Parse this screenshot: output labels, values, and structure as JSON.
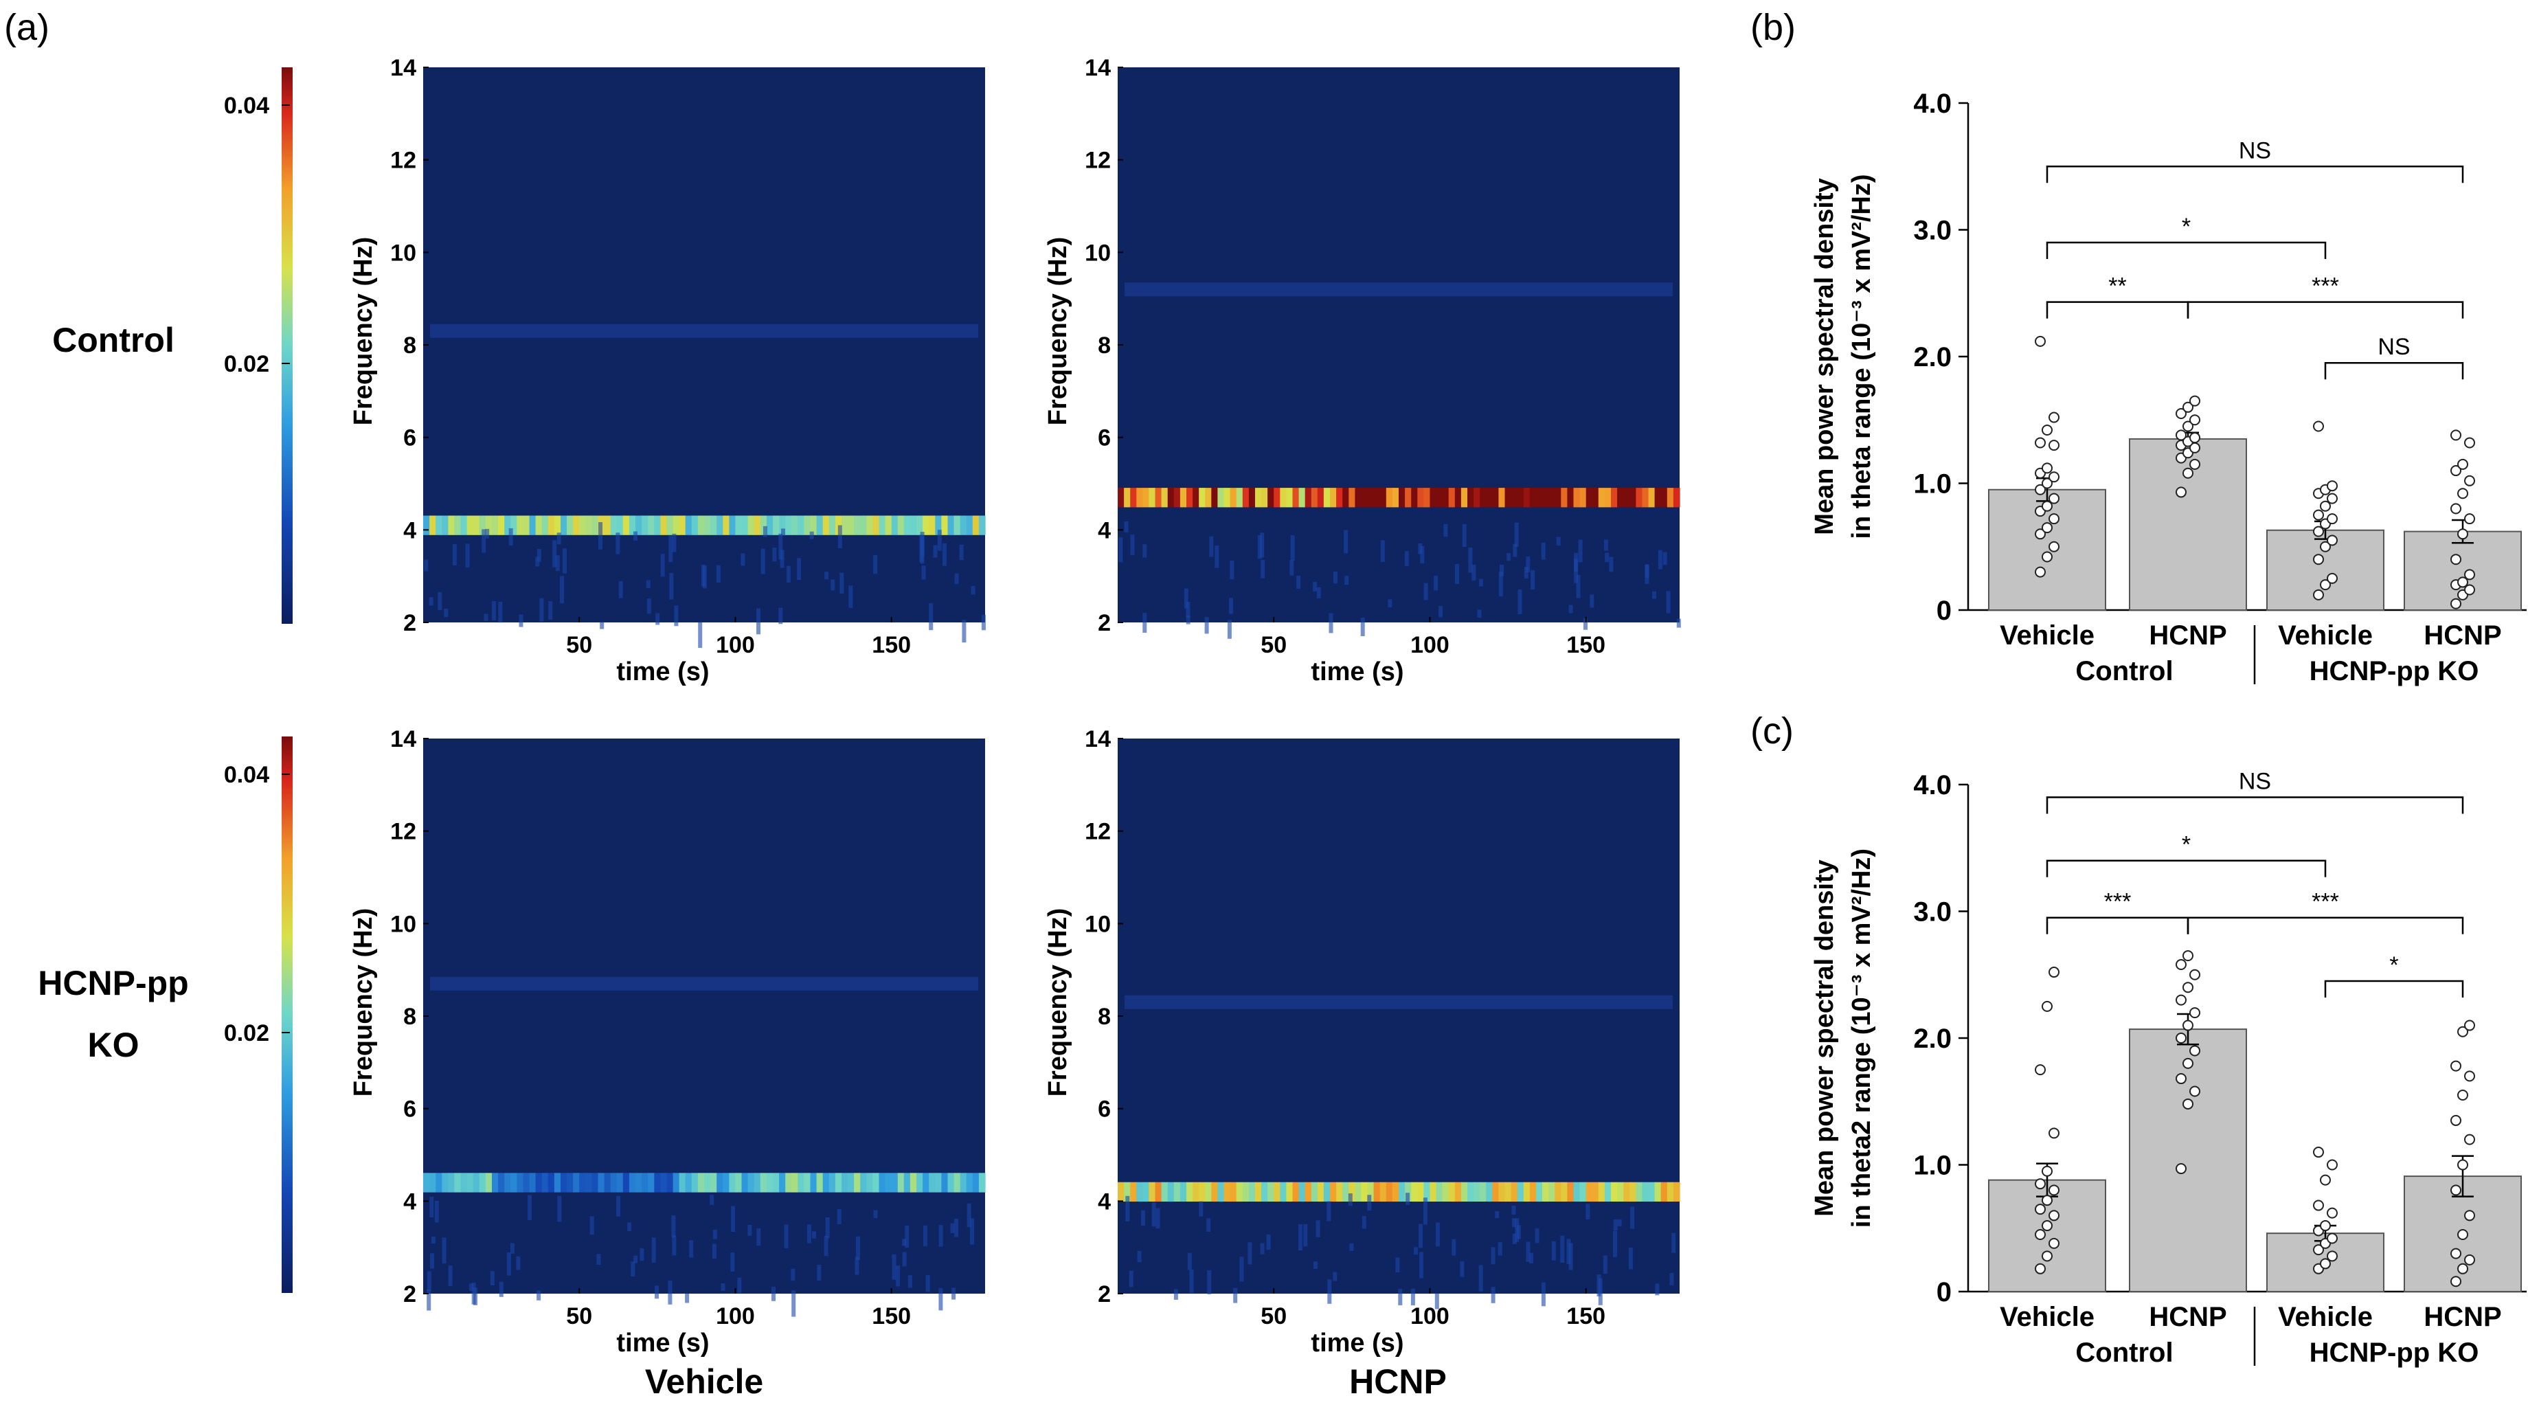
{
  "panel_labels": {
    "a": "(a)",
    "b": "(b)",
    "c": "(c)"
  },
  "row_labels": {
    "control": "Control",
    "ko_line1": "HCNP-pp",
    "ko_line2": "KO"
  },
  "column_labels": {
    "vehicle": "Vehicle",
    "hcnp": "HCNP"
  },
  "colorbar": {
    "ticks": [
      "0.04",
      "0.02"
    ],
    "tick_values": [
      0.04,
      0.02
    ],
    "range": [
      0.0,
      0.043
    ]
  },
  "colors": {
    "bar": "#c3c3c3",
    "bg_dark": "#0e2562",
    "colormap": [
      "#0b1d5e",
      "#1446b4",
      "#2f9de0",
      "#6fd6c8",
      "#d7e24a",
      "#f2a12b",
      "#d8261c",
      "#7a0c0c"
    ]
  },
  "chart_data": [
    {
      "type": "heatmap",
      "name": "Control / Vehicle",
      "xlabel": "time (s)",
      "ylabel": "Frequency (Hz)",
      "xticks": [
        50,
        100,
        150
      ],
      "yticks": [
        2,
        4,
        6,
        8,
        10,
        12,
        14
      ],
      "xlim": [
        0,
        180
      ],
      "ylim": [
        2,
        14
      ],
      "theta_band_hz": 4.1,
      "theta_power": 0.024,
      "secondary_band_hz": 8.3
    },
    {
      "type": "heatmap",
      "name": "Control / HCNP",
      "xlabel": "time (s)",
      "ylabel": "Frequency (Hz)",
      "xticks": [
        50,
        100,
        150
      ],
      "yticks": [
        2,
        4,
        6,
        8,
        10,
        12,
        14
      ],
      "xlim": [
        0,
        180
      ],
      "ylim": [
        2,
        14
      ],
      "theta_band_hz": 4.7,
      "theta_power": 0.036,
      "secondary_band_hz": 9.2
    },
    {
      "type": "heatmap",
      "name": "HCNP-pp KO / Vehicle",
      "xlabel": "time (s)",
      "ylabel": "Frequency (Hz)",
      "xticks": [
        50,
        100,
        150
      ],
      "yticks": [
        2,
        4,
        6,
        8,
        10,
        12,
        14
      ],
      "xlim": [
        0,
        180
      ],
      "ylim": [
        2,
        14
      ],
      "theta_band_hz": 4.4,
      "theta_power": 0.02,
      "secondary_band_hz": 8.7
    },
    {
      "type": "heatmap",
      "name": "HCNP-pp KO / HCNP",
      "xlabel": "time (s)",
      "ylabel": "Frequency (Hz)",
      "xticks": [
        50,
        100,
        150
      ],
      "yticks": [
        2,
        4,
        6,
        8,
        10,
        12,
        14
      ],
      "xlim": [
        0,
        180
      ],
      "ylim": [
        2,
        14
      ],
      "theta_band_hz": 4.2,
      "theta_power": 0.028,
      "secondary_band_hz": 8.3
    },
    {
      "type": "bar",
      "name": "(b)",
      "ylabel_line1": "Mean power spectral density",
      "ylabel_line2": "in theta range (10⁻³ x mV²/Hz)",
      "categories": [
        "Vehicle",
        "HCNP",
        "Vehicle",
        "HCNP"
      ],
      "groups": [
        "Control",
        "HCNP-pp KO"
      ],
      "values": [
        0.95,
        1.35,
        0.63,
        0.62
      ],
      "errors": [
        0.09,
        0.05,
        0.07,
        0.09
      ],
      "ylim": [
        0,
        4.0
      ],
      "yticks": [
        "0",
        "1.0",
        "2.0",
        "3.0",
        "4.0"
      ],
      "points": [
        [
          0.3,
          0.42,
          0.5,
          0.6,
          0.65,
          0.72,
          0.78,
          0.82,
          0.88,
          0.95,
          1.0,
          1.05,
          1.08,
          1.12,
          1.3,
          1.32,
          1.42,
          1.52,
          2.12
        ],
        [
          0.93,
          1.08,
          1.15,
          1.2,
          1.24,
          1.28,
          1.3,
          1.33,
          1.36,
          1.38,
          1.45,
          1.5,
          1.55,
          1.6,
          1.65
        ],
        [
          0.12,
          0.2,
          0.25,
          0.4,
          0.5,
          0.55,
          0.62,
          0.68,
          0.72,
          0.75,
          0.82,
          0.88,
          0.92,
          0.95,
          0.98,
          1.45
        ],
        [
          0.05,
          0.12,
          0.16,
          0.2,
          0.22,
          0.28,
          0.4,
          0.6,
          0.72,
          0.8,
          0.92,
          1.02,
          1.1,
          1.15,
          1.32,
          1.38
        ]
      ],
      "significance": [
        {
          "from": 0,
          "to": 3,
          "label": "NS",
          "y": 3.5
        },
        {
          "from": 0,
          "to": 2,
          "label": "*",
          "y": 2.9
        },
        {
          "from": 0,
          "to": 1,
          "label": "**",
          "y": 2.43
        },
        {
          "from": 1,
          "to": 3,
          "label": "***",
          "y": 2.43
        },
        {
          "from": 2,
          "to": 3,
          "label": "NS",
          "y": 1.95
        }
      ]
    },
    {
      "type": "bar",
      "name": "(c)",
      "ylabel_line1": "Mean power spectral density",
      "ylabel_line2": "in theta2 range (10⁻³ x mV²/Hz)",
      "categories": [
        "Vehicle",
        "HCNP",
        "Vehicle",
        "HCNP"
      ],
      "groups": [
        "Control",
        "HCNP-pp KO"
      ],
      "values": [
        0.88,
        2.07,
        0.46,
        0.91
      ],
      "errors": [
        0.13,
        0.12,
        0.06,
        0.16
      ],
      "ylim": [
        0,
        4.0
      ],
      "yticks": [
        "0",
        "1.0",
        "2.0",
        "3.0",
        "4.0"
      ],
      "points": [
        [
          0.18,
          0.28,
          0.38,
          0.45,
          0.52,
          0.6,
          0.65,
          0.72,
          0.8,
          0.85,
          0.95,
          1.25,
          1.75,
          2.25,
          2.52
        ],
        [
          0.97,
          1.48,
          1.58,
          1.68,
          1.8,
          1.9,
          2.0,
          2.1,
          2.2,
          2.3,
          2.4,
          2.5,
          2.58,
          2.65
        ],
        [
          0.18,
          0.22,
          0.28,
          0.33,
          0.38,
          0.42,
          0.48,
          0.52,
          0.62,
          0.68,
          0.88,
          1.0,
          1.1
        ],
        [
          0.08,
          0.18,
          0.25,
          0.3,
          0.45,
          0.6,
          0.8,
          1.0,
          1.2,
          1.35,
          1.55,
          1.7,
          1.78,
          2.05,
          2.1
        ]
      ],
      "significance": [
        {
          "from": 0,
          "to": 3,
          "label": "NS",
          "y": 3.9
        },
        {
          "from": 0,
          "to": 2,
          "label": "*",
          "y": 3.4
        },
        {
          "from": 0,
          "to": 1,
          "label": "***",
          "y": 2.95
        },
        {
          "from": 1,
          "to": 3,
          "label": "***",
          "y": 2.95
        },
        {
          "from": 2,
          "to": 3,
          "label": "*",
          "y": 2.45
        }
      ]
    }
  ]
}
